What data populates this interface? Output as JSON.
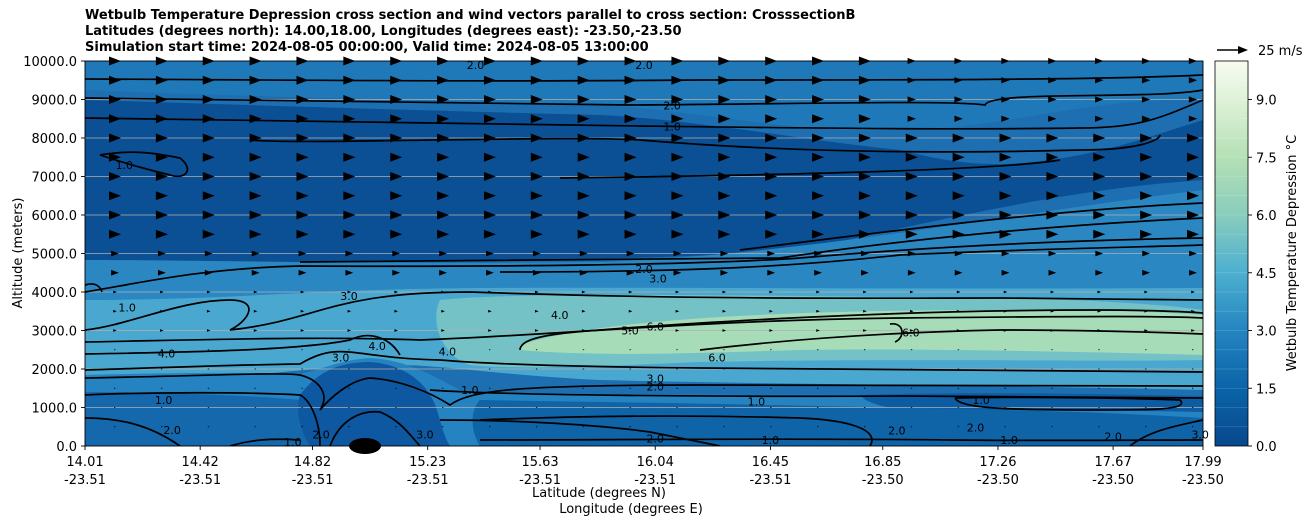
{
  "chart_data": {
    "type": "contour",
    "title_lines": [
      "Wetbulb Temperature Depression cross section and wind vectors parallel to cross section: CrosssectionB",
      "Latitudes (degrees north): 14.00,18.00, Longitudes (degrees east): -23.50,-23.50",
      "Simulation start time: 2024-08-05 00:00:00, Valid time: 2024-08-05 13:00:00"
    ],
    "ylabel": "Altitude (meters)",
    "xlabel_1": "Latitude (degrees N)",
    "xlabel_2": "Longitude (degrees E)",
    "ylim": [
      0,
      10000
    ],
    "xlim": [
      14.01,
      17.99
    ],
    "y_ticks": [
      "0.0",
      "1000.0",
      "2000.0",
      "3000.0",
      "4000.0",
      "5000.0",
      "6000.0",
      "7000.0",
      "8000.0",
      "9000.0",
      "10000.0"
    ],
    "x_ticks": [
      {
        "lat": "14.01",
        "lon": "-23.51"
      },
      {
        "lat": "14.42",
        "lon": "-23.51"
      },
      {
        "lat": "14.82",
        "lon": "-23.51"
      },
      {
        "lat": "15.23",
        "lon": "-23.51"
      },
      {
        "lat": "15.63",
        "lon": "-23.51"
      },
      {
        "lat": "16.04",
        "lon": "-23.51"
      },
      {
        "lat": "16.45",
        "lon": "-23.51"
      },
      {
        "lat": "16.85",
        "lon": "-23.50"
      },
      {
        "lat": "17.26",
        "lon": "-23.50"
      },
      {
        "lat": "17.67",
        "lon": "-23.50"
      },
      {
        "lat": "17.99",
        "lon": "-23.50"
      }
    ],
    "colorbar": {
      "label": "Wetbulb Temperature Depression °C",
      "range": [
        0,
        10
      ],
      "ticks": [
        "0.0",
        "1.5",
        "3.0",
        "4.5",
        "6.0",
        "7.5",
        "9.0"
      ],
      "levels": 20
    },
    "wind_key": "25 m/s",
    "contour_labels": [
      {
        "text": "2.0",
        "x": 15.4,
        "y": 9900
      },
      {
        "text": "2.0",
        "x": 16.0,
        "y": 9900
      },
      {
        "text": "2.0",
        "x": 16.1,
        "y": 8850
      },
      {
        "text": "1.0",
        "x": 16.1,
        "y": 8300
      },
      {
        "text": "1.0",
        "x": 14.15,
        "y": 7300
      },
      {
        "text": "2.0",
        "x": 16.0,
        "y": 4600
      },
      {
        "text": "3.0",
        "x": 16.05,
        "y": 4350
      },
      {
        "text": "3.0",
        "x": 14.95,
        "y": 3900
      },
      {
        "text": "1.0",
        "x": 14.16,
        "y": 3600
      },
      {
        "text": "4.0",
        "x": 15.7,
        "y": 3400
      },
      {
        "text": "5.0",
        "x": 15.95,
        "y": 3000
      },
      {
        "text": "6.0",
        "x": 16.04,
        "y": 3100
      },
      {
        "text": "6.0",
        "x": 16.95,
        "y": 2950
      },
      {
        "text": "6.0",
        "x": 16.26,
        "y": 2300
      },
      {
        "text": "4.0",
        "x": 15.05,
        "y": 2600
      },
      {
        "text": "4.0",
        "x": 15.3,
        "y": 2450
      },
      {
        "text": "3.0",
        "x": 14.92,
        "y": 2300
      },
      {
        "text": "4.0",
        "x": 14.3,
        "y": 2400
      },
      {
        "text": "3.0",
        "x": 16.04,
        "y": 1750
      },
      {
        "text": "2.0",
        "x": 16.04,
        "y": 1550
      },
      {
        "text": "1.0",
        "x": 15.38,
        "y": 1450
      },
      {
        "text": "1.0",
        "x": 14.29,
        "y": 1200
      },
      {
        "text": "1.0",
        "x": 16.4,
        "y": 1150
      },
      {
        "text": "1.0",
        "x": 17.2,
        "y": 1200
      },
      {
        "text": "2.0",
        "x": 17.18,
        "y": 480
      },
      {
        "text": "2.0",
        "x": 14.32,
        "y": 420
      },
      {
        "text": "2.0",
        "x": 14.85,
        "y": 300
      },
      {
        "text": "3.0",
        "x": 15.22,
        "y": 300
      },
      {
        "text": "1.0",
        "x": 14.75,
        "y": 100
      },
      {
        "text": "2.0",
        "x": 16.04,
        "y": 200
      },
      {
        "text": "1.0",
        "x": 16.45,
        "y": 150
      },
      {
        "text": "2.0",
        "x": 16.9,
        "y": 400
      },
      {
        "text": "1.0",
        "x": 17.3,
        "y": 150
      },
      {
        "text": "2.0",
        "x": 17.67,
        "y": 250
      },
      {
        "text": "3.0",
        "x": 17.98,
        "y": 300
      }
    ]
  }
}
